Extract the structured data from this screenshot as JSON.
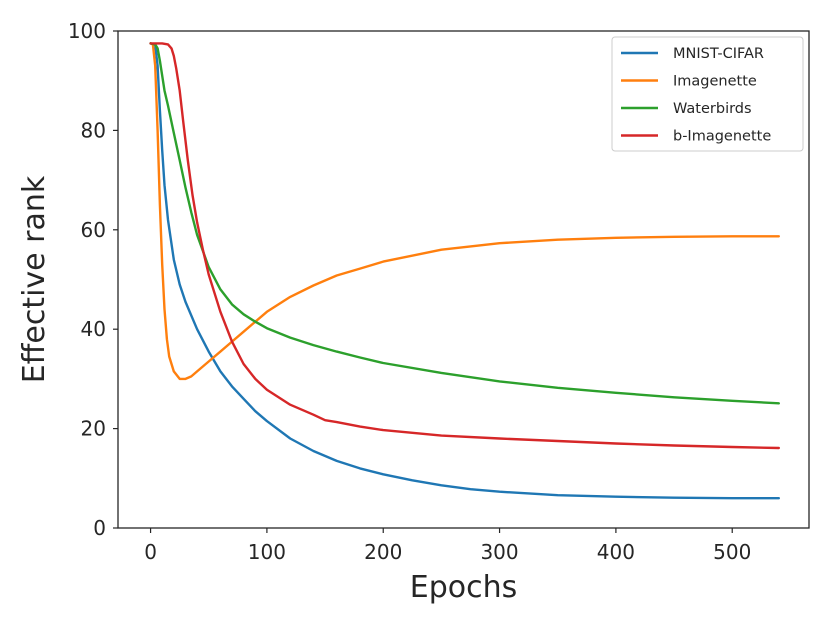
{
  "chart_data": {
    "type": "line",
    "title": "",
    "xlabel": "Epochs",
    "ylabel": "Effective rank",
    "xlim": [
      -28,
      566
    ],
    "ylim": [
      0,
      100
    ],
    "xticks": [
      0,
      100,
      200,
      300,
      400,
      500
    ],
    "yticks": [
      0,
      20,
      40,
      60,
      80,
      100
    ],
    "grid": false,
    "legend_position": "top-right",
    "series": [
      {
        "name": "MNIST-CIFAR",
        "color": "#1f77b4",
        "x": [
          0,
          4,
          6,
          8,
          10,
          12,
          15,
          20,
          25,
          30,
          40,
          50,
          60,
          70,
          80,
          90,
          100,
          120,
          140,
          160,
          180,
          200,
          225,
          250,
          275,
          300,
          350,
          400,
          450,
          500,
          540
        ],
        "y": [
          97.5,
          97.2,
          93,
          84,
          76,
          69,
          62,
          54,
          49,
          45.5,
          40,
          35.5,
          31.5,
          28.5,
          26,
          23.5,
          21.5,
          18,
          15.5,
          13.5,
          12,
          10.8,
          9.6,
          8.6,
          7.8,
          7.3,
          6.6,
          6.3,
          6.1,
          6.0,
          6.0
        ]
      },
      {
        "name": "Imagenette",
        "color": "#ff7f0e",
        "x": [
          0,
          2,
          4,
          6,
          8,
          10,
          12,
          14,
          16,
          20,
          25,
          30,
          35,
          40,
          50,
          60,
          70,
          80,
          100,
          120,
          140,
          160,
          180,
          200,
          250,
          300,
          350,
          400,
          450,
          500,
          540
        ],
        "y": [
          97.5,
          97.3,
          93,
          80,
          65,
          53,
          44,
          38,
          34.5,
          31.5,
          30,
          30,
          30.5,
          31.5,
          33.5,
          35.5,
          37.5,
          39.5,
          43.5,
          46.5,
          48.8,
          50.8,
          52.2,
          53.6,
          56,
          57.3,
          58,
          58.4,
          58.6,
          58.7,
          58.7
        ]
      },
      {
        "name": "Waterbirds",
        "color": "#2ca02c",
        "x": [
          0,
          4,
          6,
          8,
          10,
          12,
          15,
          20,
          25,
          30,
          35,
          40,
          50,
          60,
          70,
          80,
          90,
          100,
          120,
          140,
          160,
          180,
          200,
          250,
          300,
          350,
          400,
          450,
          500,
          540
        ],
        "y": [
          97.5,
          97.3,
          96.5,
          94,
          91,
          88,
          85,
          79.5,
          74,
          68.5,
          63.5,
          59,
          52.5,
          48,
          45,
          43,
          41.5,
          40.2,
          38.3,
          36.8,
          35.5,
          34.3,
          33.2,
          31.2,
          29.5,
          28.2,
          27.2,
          26.3,
          25.6,
          25.1
        ]
      },
      {
        "name": "b-Imagenette",
        "color": "#d62728",
        "x": [
          0,
          10,
          15,
          18,
          20,
          22,
          25,
          28,
          32,
          36,
          40,
          45,
          50,
          60,
          70,
          80,
          90,
          100,
          120,
          140,
          150,
          160,
          180,
          200,
          250,
          300,
          350,
          400,
          450,
          500,
          540
        ],
        "y": [
          97.5,
          97.5,
          97.3,
          96.5,
          95,
          92.5,
          88,
          82,
          74,
          67,
          61.5,
          56,
          51,
          43.5,
          37.5,
          33,
          30,
          27.8,
          24.8,
          22.8,
          21.7,
          21.3,
          20.4,
          19.7,
          18.6,
          18,
          17.5,
          17,
          16.6,
          16.3,
          16.1
        ]
      }
    ]
  }
}
